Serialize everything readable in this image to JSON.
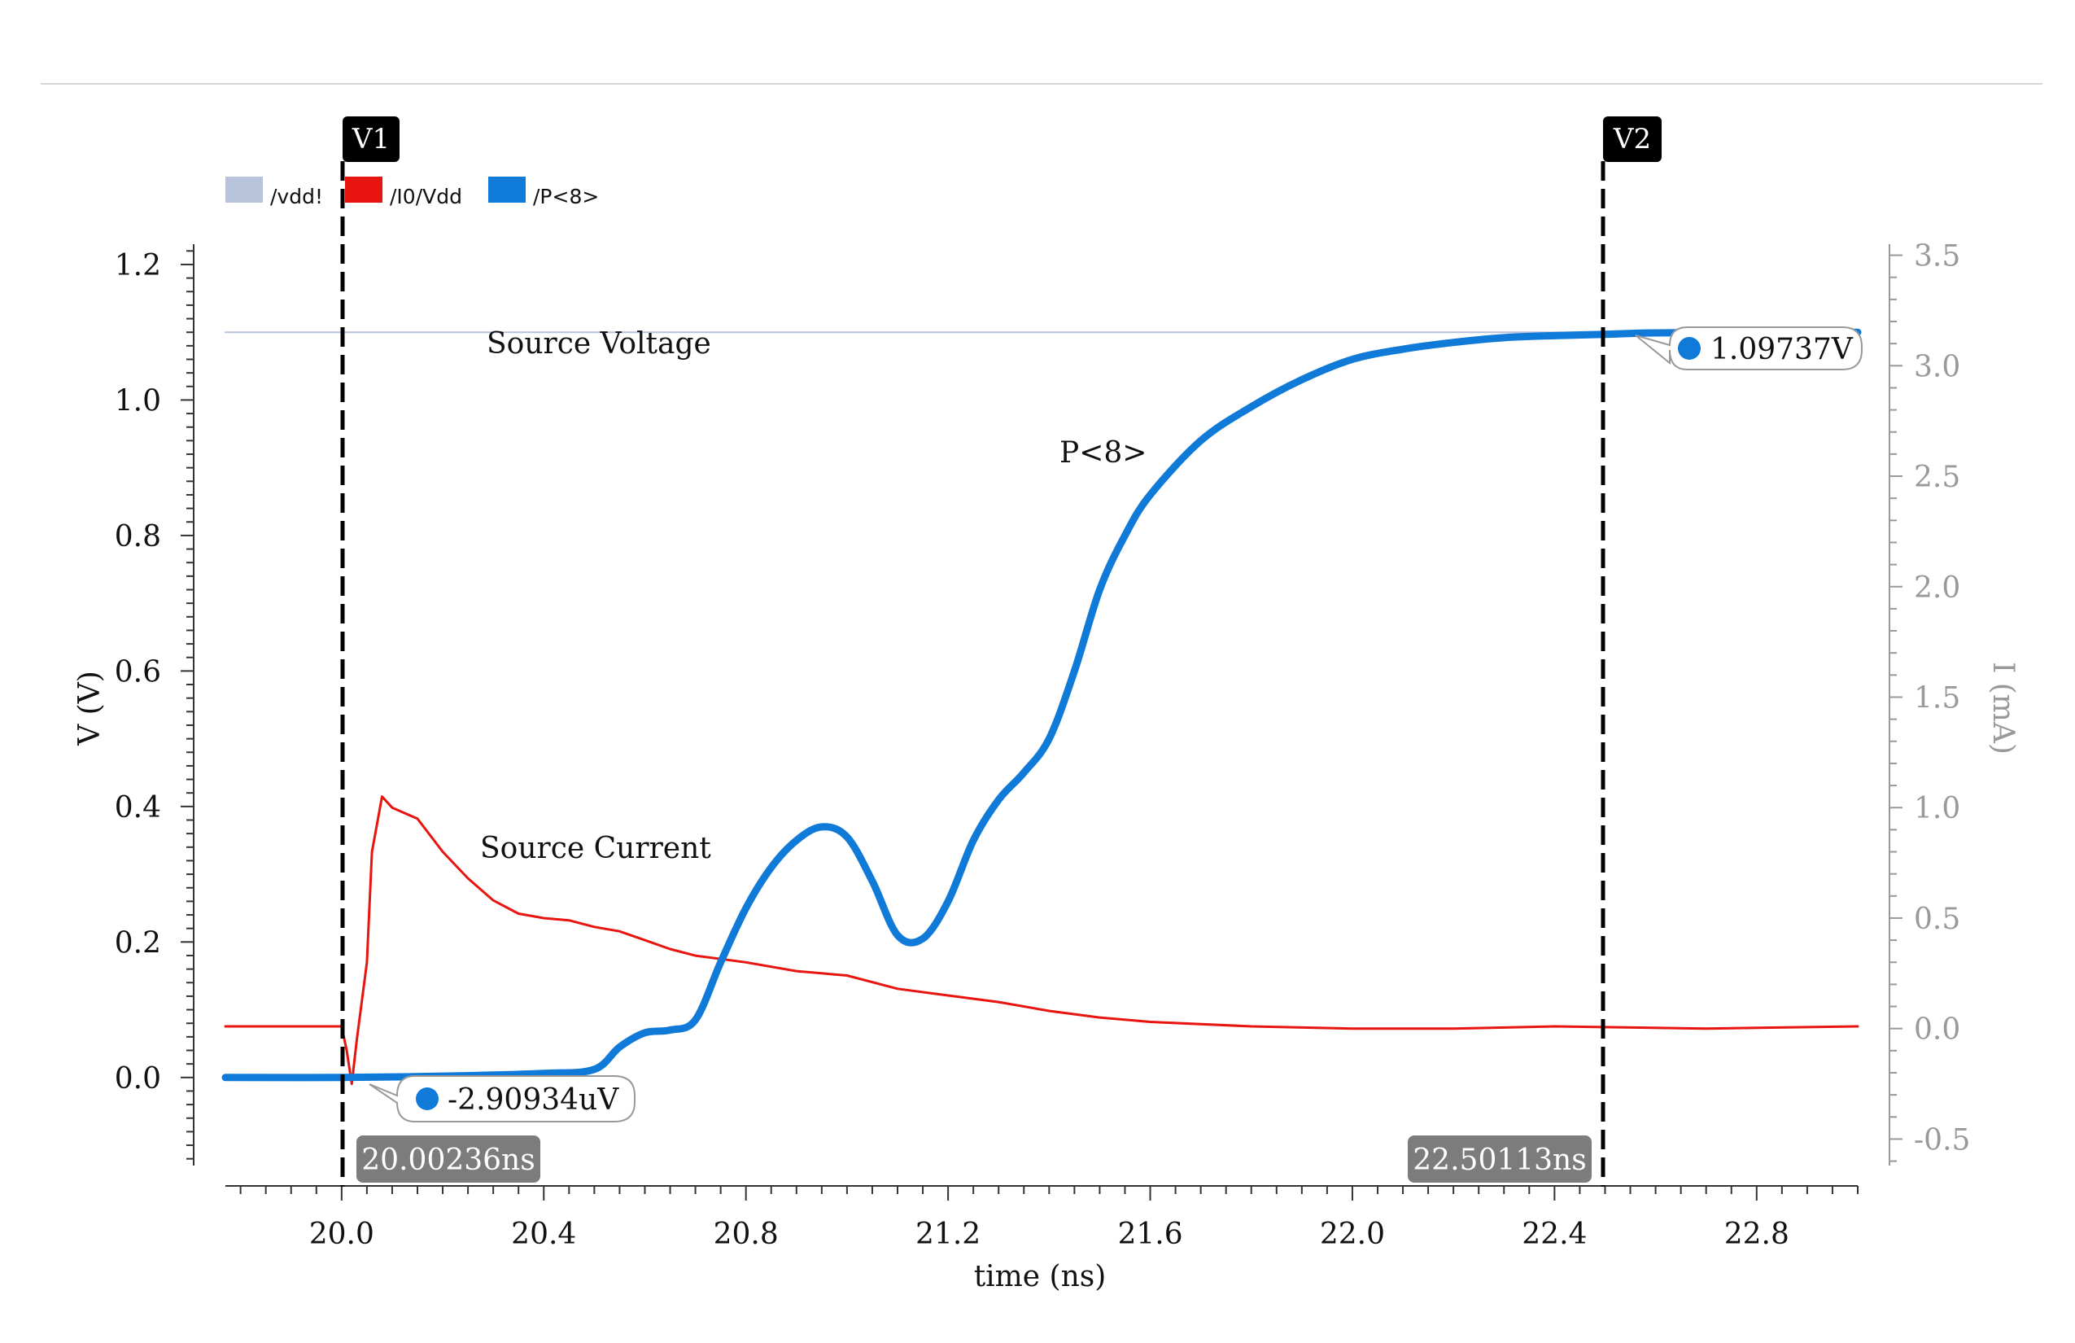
{
  "chart_data": {
    "type": "line",
    "xlabel": "time (ns)",
    "ylabel_left": "V (V)",
    "ylabel_right": "I (mA)",
    "xlim": [
      19.77,
      23.0
    ],
    "ylim_left": [
      -0.13,
      1.23
    ],
    "ylim_right": [
      -0.62,
      3.55
    ],
    "x_ticks": [
      "20.0",
      "20.4",
      "20.8",
      "21.2",
      "21.6",
      "22.0",
      "22.4",
      "22.8"
    ],
    "y_ticks_left": [
      "0.0",
      "0.2",
      "0.4",
      "0.6",
      "0.8",
      "1.0",
      "1.2"
    ],
    "y_ticks_right": [
      "-0.5",
      "0.0",
      "0.5",
      "1.0",
      "1.5",
      "2.0",
      "2.5",
      "3.0",
      "3.5"
    ],
    "legend_placement": "top-left",
    "series": [
      {
        "name": "/vdd!",
        "axis": "left",
        "color": "#b8c4dc",
        "x": [
          19.77,
          23.0
        ],
        "y": [
          1.1,
          1.1
        ]
      },
      {
        "name": "/I0/Vdd",
        "axis": "right",
        "color": "#e8140f",
        "x": [
          19.77,
          20.0,
          20.01,
          20.02,
          20.03,
          20.05,
          20.06,
          20.08,
          20.1,
          20.12,
          20.15,
          20.2,
          20.25,
          20.3,
          20.35,
          20.4,
          20.45,
          20.5,
          20.55,
          20.6,
          20.65,
          20.7,
          20.8,
          20.9,
          21.0,
          21.1,
          21.2,
          21.3,
          21.4,
          21.5,
          21.6,
          21.8,
          22.0,
          22.2,
          22.4,
          22.7,
          23.0
        ],
        "y": [
          0.01,
          0.01,
          -0.1,
          -0.25,
          -0.05,
          0.3,
          0.8,
          1.05,
          1.0,
          0.98,
          0.95,
          0.8,
          0.68,
          0.58,
          0.52,
          0.5,
          0.49,
          0.46,
          0.44,
          0.4,
          0.36,
          0.33,
          0.3,
          0.26,
          0.24,
          0.18,
          0.15,
          0.12,
          0.08,
          0.05,
          0.03,
          0.01,
          0.0,
          0.0,
          0.01,
          0.0,
          0.01
        ]
      },
      {
        "name": "/P<8>",
        "axis": "left",
        "color": "#0f7ad8",
        "x": [
          19.77,
          20.0,
          20.2,
          20.4,
          20.5,
          20.55,
          20.6,
          20.65,
          20.7,
          20.75,
          20.8,
          20.85,
          20.9,
          20.95,
          21.0,
          21.05,
          21.1,
          21.15,
          21.2,
          21.25,
          21.3,
          21.35,
          21.4,
          21.45,
          21.5,
          21.55,
          21.6,
          21.7,
          21.8,
          21.9,
          22.0,
          22.1,
          22.2,
          22.3,
          22.4,
          22.5,
          22.6,
          22.8,
          23.0
        ],
        "y": [
          0.0,
          0.0,
          0.002,
          0.006,
          0.012,
          0.045,
          0.066,
          0.07,
          0.085,
          0.17,
          0.25,
          0.31,
          0.35,
          0.37,
          0.355,
          0.29,
          0.21,
          0.205,
          0.26,
          0.35,
          0.41,
          0.45,
          0.5,
          0.6,
          0.72,
          0.8,
          0.86,
          0.94,
          0.99,
          1.03,
          1.06,
          1.075,
          1.085,
          1.092,
          1.095,
          1.097,
          1.099,
          1.1,
          1.1
        ]
      }
    ],
    "annotations": [
      {
        "text": "Source Voltage",
        "x": 20.3,
        "y": 1.1
      },
      {
        "text": "Source Current",
        "x": 20.3,
        "y": 0.33
      },
      {
        "text": "P<8>",
        "x": 21.2,
        "y": 0.89
      }
    ],
    "markers": [
      {
        "label": "V1",
        "x": 20.00236,
        "x_label": "20.00236ns",
        "point_label": "-2.90934uV",
        "point_y": 0.0
      },
      {
        "label": "V2",
        "x": 22.50113,
        "x_label": "22.50113ns",
        "point_label": "1.09737V",
        "point_y": 1.097
      }
    ]
  }
}
